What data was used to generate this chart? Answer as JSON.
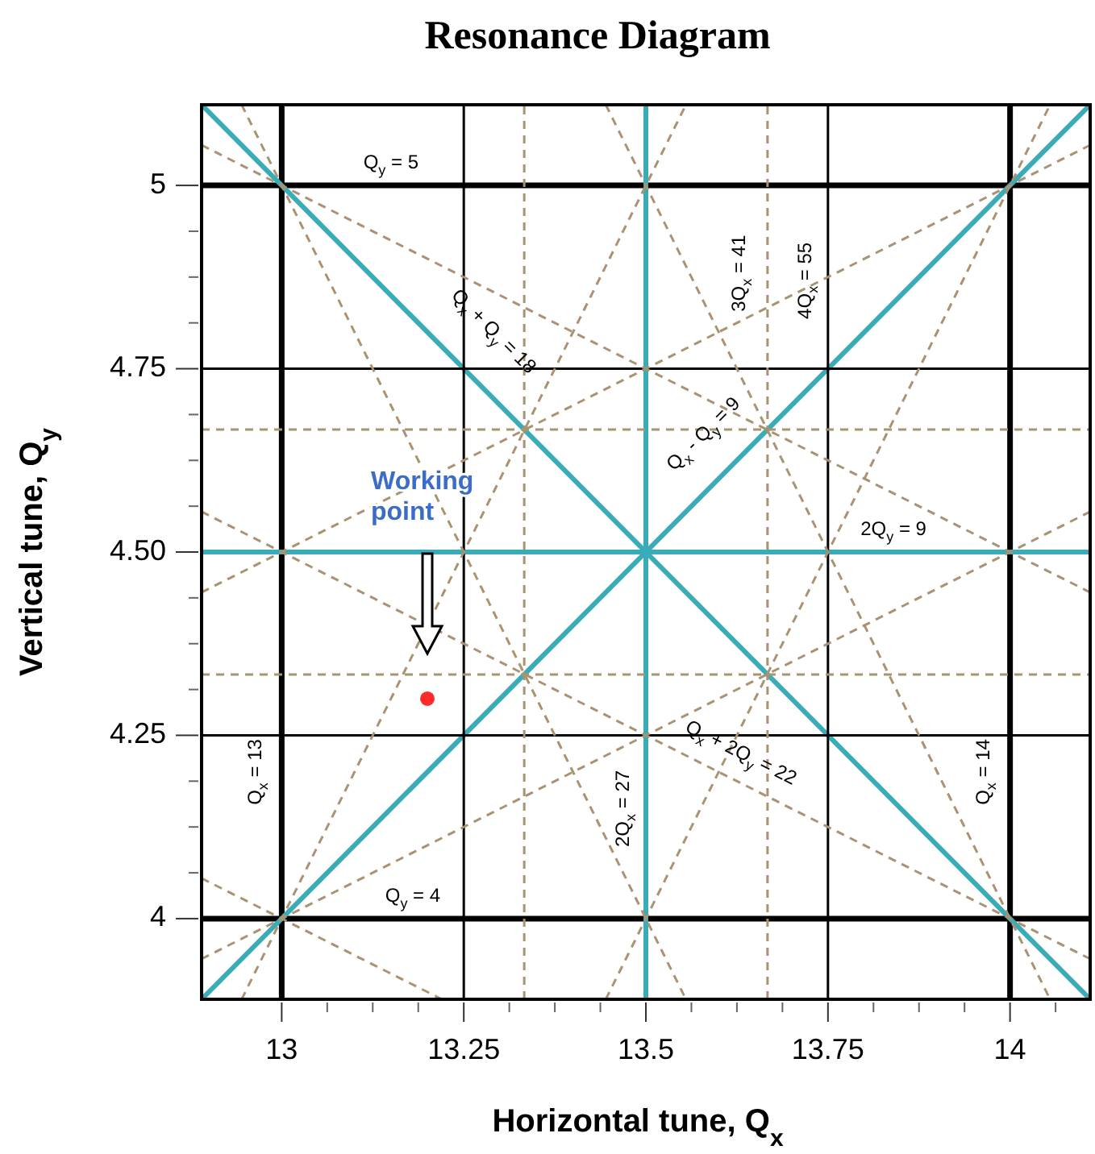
{
  "chart_data": {
    "type": "line",
    "title": "Resonance Diagram",
    "xlabel": "Horizontal tune, Q$_{x}$",
    "ylabel": "Vertical tune, Q$_{y}$",
    "xlim": [
      12.89,
      14.11
    ],
    "ylim": [
      3.89,
      5.11
    ],
    "xticks": [
      13,
      {
        "value": 13.0625,
        "label": null
      },
      {
        "value": 13.125,
        "label": null
      },
      {
        "value": 13.1875,
        "label": null
      },
      13.25,
      {
        "value": 13.3125,
        "label": null
      },
      {
        "value": 13.375,
        "label": null
      },
      {
        "value": 13.4375,
        "label": null
      },
      13.5,
      {
        "value": 13.5625,
        "label": null
      },
      {
        "value": 13.625,
        "label": null
      },
      {
        "value": 13.6875,
        "label": null
      },
      13.75,
      {
        "value": 13.8125,
        "label": null
      },
      {
        "value": 13.875,
        "label": null
      },
      {
        "value": 13.9375,
        "label": null
      },
      14,
      {
        "value": 14.0625,
        "label": null
      }
    ],
    "yticks": [
      4,
      {
        "value": 4.0625,
        "label": null
      },
      {
        "value": 4.125,
        "label": null
      },
      {
        "value": 4.1875,
        "label": null
      },
      4.25,
      {
        "value": 4.3125,
        "label": null
      },
      {
        "value": 4.375,
        "label": null
      },
      {
        "value": 4.4375,
        "label": null
      },
      {
        "value": 4.5,
        "label": "4.50"
      },
      {
        "value": 4.5625,
        "label": null
      },
      {
        "value": 4.625,
        "label": null
      },
      {
        "value": 4.6875,
        "label": null
      },
      4.75,
      {
        "value": 4.8125,
        "label": null
      },
      {
        "value": 4.875,
        "label": null
      },
      {
        "value": 4.9375,
        "label": null
      },
      5
    ],
    "marker": "none",
    "line_style": "solid",
    "annotations": [
      "Working point"
    ],
    "series": [
      {
        "name": "Q$_{x}$ = 13",
        "color": "#000000",
        "x": [
          13,
          13
        ],
        "values": [
          3.89,
          5.11
        ]
      },
      {
        "name": "Q$_{x}$ = 14",
        "color": "#000000",
        "x": [
          14,
          14
        ],
        "values": [
          3.89,
          5.11
        ]
      },
      {
        "name": "Q$_{y}$ = 4",
        "color": "#000000",
        "x": [
          12.89,
          14.11
        ],
        "values": [
          4,
          4
        ]
      },
      {
        "name": "Q$_{y}$ = 5",
        "color": "#000000",
        "x": [
          12.89,
          14.11
        ],
        "values": [
          5,
          5
        ]
      },
      {
        "name": "2Q$_{x}$ = 27",
        "color": "#3aacb8",
        "x": [
          13.5,
          13.5
        ],
        "values": [
          3.89,
          5.11
        ]
      },
      {
        "name": "2Q$_{y}$ = 9",
        "color": "#3aacb8",
        "x": [
          12.89,
          14.11
        ],
        "values": [
          4.5,
          4.5
        ]
      },
      {
        "name": "Q$_{x}$ + Q$_{y}$ = 18",
        "color": "#3aacb8",
        "x": [
          12.89,
          14.11
        ],
        "values": [
          5.11,
          3.89
        ]
      },
      {
        "name": "Q$_{x}$ - Q$_{y}$ = 9",
        "color": "#3aacb8",
        "x": [
          12.89,
          14.11
        ],
        "values": [
          3.89,
          5.11
        ]
      },
      {
        "color": "#000000",
        "x": [
          13.25,
          13.25
        ],
        "values": [
          3.89,
          5.11
        ]
      },
      {
        "name": "4Q$_{x}$ = 55",
        "color": "#000000",
        "x": [
          13.75,
          13.75
        ],
        "values": [
          3.89,
          5.11
        ]
      },
      {
        "color": "#000000",
        "x": [
          12.89,
          14.11
        ],
        "values": [
          4.25,
          4.25
        ]
      },
      {
        "color": "#000000",
        "x": [
          12.89,
          14.11
        ],
        "values": [
          4.75,
          4.75
        ]
      },
      {
        "color": "#a89372",
        "line_style": "dashed",
        "x": [
          13.333,
          13.333
        ],
        "values": [
          3.89,
          5.11
        ]
      },
      {
        "name": "3Q$_{x}$ = 41",
        "color": "#a89372",
        "line_style": "dashed",
        "x": [
          13.667,
          13.667
        ],
        "values": [
          3.89,
          5.11
        ]
      },
      {
        "color": "#a89372",
        "line_style": "dashed",
        "x": [
          12.89,
          14.11
        ],
        "values": [
          4.333,
          4.333
        ]
      },
      {
        "color": "#a89372",
        "line_style": "dashed",
        "x": [
          12.89,
          14.11
        ],
        "values": [
          4.667,
          4.667
        ]
      },
      {
        "color": "#a89372",
        "line_style": "dashed",
        "x": [
          12.89,
          13.22
        ],
        "values": [
          4.055,
          3.89
        ]
      },
      {
        "name": "Q$_{x}$ + 2Q$_{y}$ = 22",
        "color": "#a89372",
        "line_style": "dashed",
        "x": [
          12.89,
          14.11
        ],
        "values": [
          4.555,
          3.945
        ]
      },
      {
        "color": "#a89372",
        "line_style": "dashed",
        "x": [
          12.89,
          14.11
        ],
        "values": [
          5.055,
          4.445
        ]
      },
      {
        "color": "#a89372",
        "line_style": "dashed",
        "x": [
          12.89,
          14.11
        ],
        "values": [
          4.445,
          5.055
        ]
      },
      {
        "color": "#a89372",
        "line_style": "dashed",
        "x": [
          12.89,
          14.11
        ],
        "values": [
          3.945,
          4.555
        ]
      },
      {
        "color": "#a89372",
        "line_style": "dashed",
        "x": [
          12.945,
          13.555
        ],
        "values": [
          5.11,
          3.89
        ]
      },
      {
        "color": "#a89372",
        "line_style": "dashed",
        "x": [
          13.445,
          14.055
        ],
        "values": [
          5.11,
          3.89
        ]
      },
      {
        "color": "#a89372",
        "line_style": "dashed",
        "x": [
          12.945,
          13.555
        ],
        "values": [
          3.89,
          5.11
        ]
      },
      {
        "color": "#a89372",
        "line_style": "dashed",
        "x": [
          13.445,
          14.055
        ],
        "values": [
          3.89,
          5.11
        ]
      },
      {
        "type": "scatter",
        "marker": "circle",
        "color": "#ff2a2a",
        "x": [
          13.2
        ],
        "values": [
          4.3
        ]
      }
    ]
  }
}
